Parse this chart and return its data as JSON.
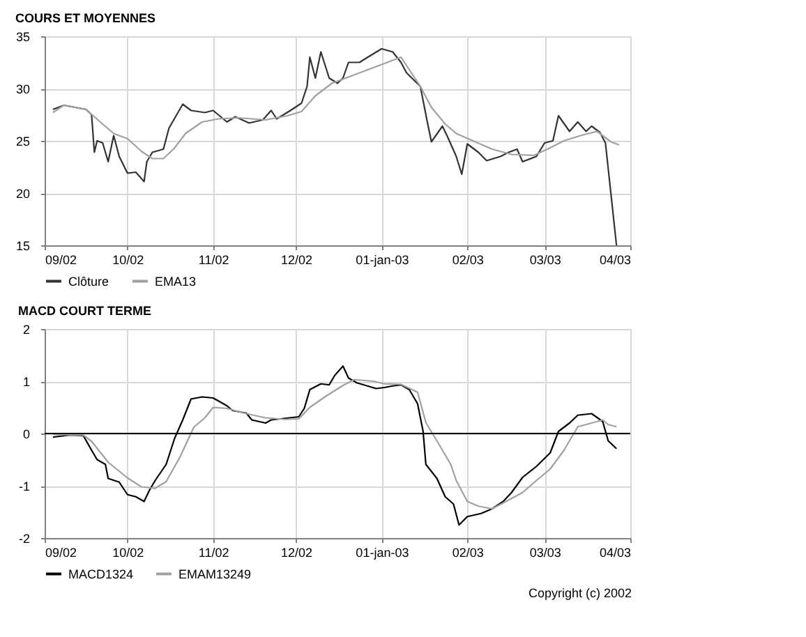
{
  "chart_data": [
    {
      "type": "line",
      "title": "COURS ET MOYENNES",
      "xlim": [
        "2002-09-01",
        "2003-04-01"
      ],
      "xticks": [
        {
          "value": "2002-09-01",
          "label": "09/02"
        },
        {
          "value": "2002-10-01",
          "label": "10/02"
        },
        {
          "value": "2002-11-01",
          "label": "11/02"
        },
        {
          "value": "2002-12-01",
          "label": "12/02"
        },
        {
          "value": "2003-01-01",
          "label": "01-jan-03"
        },
        {
          "value": "2003-02-01",
          "label": "02/03"
        },
        {
          "value": "2003-03-01",
          "label": "03/03"
        },
        {
          "value": "2003-04-01",
          "label": "04/03"
        }
      ],
      "ylim": [
        15,
        35
      ],
      "yticks": [
        15,
        20,
        25,
        30,
        35
      ],
      "grid": true,
      "legend": "bottom left",
      "marker": "none",
      "line_style": "solid",
      "series": [
        {
          "name": "Clôture",
          "color": "#333333",
          "x": [
            "2002-09-04",
            "2002-09-08",
            "2002-09-16",
            "2002-09-18",
            "2002-09-19",
            "2002-09-20",
            "2002-09-22",
            "2002-09-24",
            "2002-09-26",
            "2002-09-28",
            "2002-10-01",
            "2002-10-04",
            "2002-10-07",
            "2002-10-08",
            "2002-10-10",
            "2002-10-14",
            "2002-10-16",
            "2002-10-21",
            "2002-10-24",
            "2002-10-29",
            "2002-11-01",
            "2002-11-06",
            "2002-11-09",
            "2002-11-14",
            "2002-11-19",
            "2002-11-22",
            "2002-11-24",
            "2002-11-29",
            "2002-12-03",
            "2002-12-05",
            "2002-12-06",
            "2002-12-08",
            "2002-12-10",
            "2002-12-13",
            "2002-12-16",
            "2002-12-18",
            "2002-12-20",
            "2002-12-24",
            "2002-12-27",
            "2003-01-01",
            "2003-01-05",
            "2003-01-08",
            "2003-01-10",
            "2003-01-15",
            "2003-01-17",
            "2003-01-19",
            "2003-01-23",
            "2003-01-25",
            "2003-01-28",
            "2003-01-30",
            "2003-02-01",
            "2003-02-05",
            "2003-02-08",
            "2003-02-13",
            "2003-02-16",
            "2003-02-19",
            "2003-02-21",
            "2003-02-26",
            "2003-03-01",
            "2003-03-04",
            "2003-03-06",
            "2003-03-10",
            "2003-03-13",
            "2003-03-16",
            "2003-03-18",
            "2003-03-21",
            "2003-03-23",
            "2003-03-27"
          ],
          "values": [
            28.0,
            28.4,
            28.0,
            27.5,
            23.9,
            25.0,
            24.8,
            23.0,
            25.5,
            23.5,
            21.9,
            22.0,
            21.1,
            23.0,
            23.9,
            24.2,
            26.2,
            28.5,
            27.9,
            27.7,
            27.9,
            26.8,
            27.3,
            26.7,
            27.0,
            27.9,
            27.1,
            27.9,
            28.6,
            30.2,
            33.0,
            31.0,
            33.5,
            31.0,
            30.5,
            31.0,
            32.5,
            32.5,
            33.0,
            33.8,
            33.5,
            32.5,
            31.5,
            30.2,
            27.5,
            24.9,
            26.4,
            25.3,
            23.5,
            21.8,
            24.7,
            23.9,
            23.1,
            23.5,
            23.9,
            24.2,
            23.0,
            23.5,
            24.8,
            25.0,
            27.4,
            25.9,
            26.8,
            25.9,
            26.4,
            25.8,
            24.8,
            15.0
          ]
        },
        {
          "name": "EMA13",
          "color": "#a0a0a0",
          "x": [
            "2002-09-04",
            "2002-09-08",
            "2002-09-16",
            "2002-09-22",
            "2002-09-26",
            "2002-10-01",
            "2002-10-06",
            "2002-10-10",
            "2002-10-14",
            "2002-10-18",
            "2002-10-22",
            "2002-10-28",
            "2002-11-03",
            "2002-11-10",
            "2002-11-20",
            "2002-11-28",
            "2002-12-03",
            "2002-12-08",
            "2002-12-14",
            "2002-12-22",
            "2003-01-01",
            "2003-01-08",
            "2003-01-15",
            "2003-01-19",
            "2003-01-24",
            "2003-01-28",
            "2003-02-03",
            "2003-02-10",
            "2003-02-17",
            "2003-02-25",
            "2003-03-02",
            "2003-03-08",
            "2003-03-14",
            "2003-03-20",
            "2003-03-25",
            "2003-03-28"
          ],
          "values": [
            27.7,
            28.4,
            28.0,
            26.6,
            25.7,
            25.2,
            24.0,
            23.3,
            23.3,
            24.3,
            25.7,
            26.8,
            27.1,
            27.2,
            27.0,
            27.4,
            27.8,
            29.3,
            30.5,
            31.3,
            32.3,
            33.0,
            30.2,
            28.2,
            26.6,
            25.7,
            25.0,
            24.2,
            23.7,
            23.6,
            24.2,
            25.0,
            25.5,
            25.9,
            24.9,
            24.6
          ]
        }
      ]
    },
    {
      "type": "line",
      "title": "MACD COURT TERME",
      "xlim": [
        "2002-09-01",
        "2003-04-01"
      ],
      "xticks": [
        {
          "value": "2002-09-01",
          "label": "09/02"
        },
        {
          "value": "2002-10-01",
          "label": "10/02"
        },
        {
          "value": "2002-11-01",
          "label": "11/02"
        },
        {
          "value": "2002-12-01",
          "label": "12/02"
        },
        {
          "value": "2003-01-01",
          "label": "01-jan-03"
        },
        {
          "value": "2003-02-01",
          "label": "02/03"
        },
        {
          "value": "2003-03-01",
          "label": "03/03"
        },
        {
          "value": "2003-04-01",
          "label": "04/03"
        }
      ],
      "ylim": [
        -2,
        2
      ],
      "yticks": [
        -2,
        -1,
        0,
        1,
        2
      ],
      "grid": true,
      "legend": "bottom left",
      "marker": "none",
      "line_style": "solid",
      "ref_lines": [
        {
          "axis": "y",
          "value": 0,
          "color": "#000000"
        }
      ],
      "annotations": [
        "Copyright (c) 2002"
      ],
      "series": [
        {
          "name": "MACD1324",
          "color": "#000000",
          "x": [
            "2002-09-04",
            "2002-09-10",
            "2002-09-15",
            "2002-09-18",
            "2002-09-20",
            "2002-09-23",
            "2002-09-24",
            "2002-09-28",
            "2002-10-01",
            "2002-10-04",
            "2002-10-07",
            "2002-10-09",
            "2002-10-11",
            "2002-10-15",
            "2002-10-18",
            "2002-10-21",
            "2002-10-24",
            "2002-10-28",
            "2002-11-01",
            "2002-11-06",
            "2002-11-08",
            "2002-11-13",
            "2002-11-15",
            "2002-11-20",
            "2002-11-22",
            "2002-11-27",
            "2002-12-02",
            "2002-12-04",
            "2002-12-06",
            "2002-12-10",
            "2002-12-13",
            "2002-12-15",
            "2002-12-18",
            "2002-12-20",
            "2002-12-23",
            "2002-12-30",
            "2003-01-02",
            "2003-01-05",
            "2003-01-08",
            "2003-01-11",
            "2003-01-14",
            "2003-01-16",
            "2003-01-17",
            "2003-01-21",
            "2003-01-24",
            "2003-01-27",
            "2003-01-29",
            "2003-02-01",
            "2003-02-06",
            "2003-02-10",
            "2003-02-14",
            "2003-02-17",
            "2003-02-21",
            "2003-02-26",
            "2003-03-03",
            "2003-03-06",
            "2003-03-10",
            "2003-03-13",
            "2003-03-18",
            "2003-03-22",
            "2003-03-24",
            "2003-03-27"
          ],
          "values": [
            -0.07,
            -0.03,
            -0.04,
            -0.32,
            -0.5,
            -0.59,
            -0.86,
            -0.93,
            -1.17,
            -1.21,
            -1.3,
            -1.08,
            -0.9,
            -0.59,
            -0.1,
            0.26,
            0.66,
            0.7,
            0.68,
            0.53,
            0.44,
            0.39,
            0.26,
            0.2,
            0.26,
            0.29,
            0.32,
            0.48,
            0.84,
            0.95,
            0.93,
            1.11,
            1.29,
            1.06,
            0.97,
            0.86,
            0.88,
            0.91,
            0.93,
            0.84,
            0.57,
            0.04,
            -0.59,
            -0.86,
            -1.21,
            -1.35,
            -1.75,
            -1.59,
            -1.53,
            -1.44,
            -1.3,
            -1.13,
            -0.84,
            -0.63,
            -0.37,
            0.04,
            0.2,
            0.35,
            0.38,
            0.23,
            -0.14,
            -0.29
          ]
        },
        {
          "name": "EMAM13249",
          "color": "#a0a0a0",
          "x": [
            "2002-09-04",
            "2002-09-15",
            "2002-09-18",
            "2002-09-24",
            "2002-10-01",
            "2002-10-06",
            "2002-10-11",
            "2002-10-15",
            "2002-10-20",
            "2002-10-25",
            "2002-10-29",
            "2002-11-01",
            "2002-11-06",
            "2002-11-13",
            "2002-11-20",
            "2002-11-27",
            "2002-12-02",
            "2002-12-06",
            "2002-12-12",
            "2002-12-18",
            "2002-12-22",
            "2002-12-29",
            "2003-01-02",
            "2003-01-08",
            "2003-01-14",
            "2003-01-17",
            "2003-01-22",
            "2003-01-26",
            "2003-01-28",
            "2003-02-01",
            "2003-02-05",
            "2003-02-10",
            "2003-02-15",
            "2003-02-21",
            "2003-02-26",
            "2003-03-03",
            "2003-03-08",
            "2003-03-13",
            "2003-03-18",
            "2003-03-22",
            "2003-03-24",
            "2003-03-27"
          ],
          "values": [
            -0.02,
            -0.03,
            -0.15,
            -0.55,
            -0.85,
            -1.02,
            -1.05,
            -0.92,
            -0.45,
            0.12,
            0.3,
            0.5,
            0.48,
            0.38,
            0.3,
            0.27,
            0.28,
            0.5,
            0.72,
            0.92,
            1.03,
            1.0,
            0.95,
            0.94,
            0.79,
            0.21,
            -0.23,
            -0.59,
            -0.9,
            -1.3,
            -1.39,
            -1.44,
            -1.3,
            -1.13,
            -0.9,
            -0.68,
            -0.32,
            0.13,
            0.2,
            0.26,
            0.17,
            0.13
          ]
        }
      ]
    }
  ]
}
